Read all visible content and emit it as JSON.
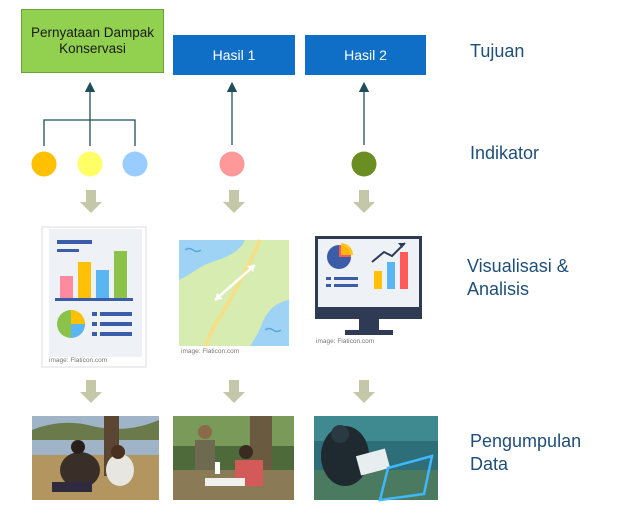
{
  "goals": [
    {
      "label": "Pernyataan Dampak Konservasi",
      "color": "#92d050"
    },
    {
      "label": "Hasil 1",
      "color": "#0f6fc6"
    },
    {
      "label": "Hasil 2",
      "color": "#0f6fc6"
    }
  ],
  "row_labels": {
    "tujuan": "Tujuan",
    "indikator": "Indikator",
    "visualisasi": "Visualisasi & Analisis",
    "pengumpulan": "Pengumpulan Data"
  },
  "indicators": [
    {
      "color": "#ffc000"
    },
    {
      "color": "#ffff66"
    },
    {
      "color": "#99ccff"
    },
    {
      "color": "#ff9999"
    },
    {
      "color": "#6b8e23"
    }
  ],
  "image_credits": [
    "image: Flaticon.com",
    "image: Flaticon.com",
    "image: Flaticon.com"
  ],
  "icons": [
    "report-chart-icon",
    "map-icon",
    "monitor-dashboard-icon"
  ],
  "arrow_color": "#c4c8a8",
  "connector_color": "#1f4e5a"
}
